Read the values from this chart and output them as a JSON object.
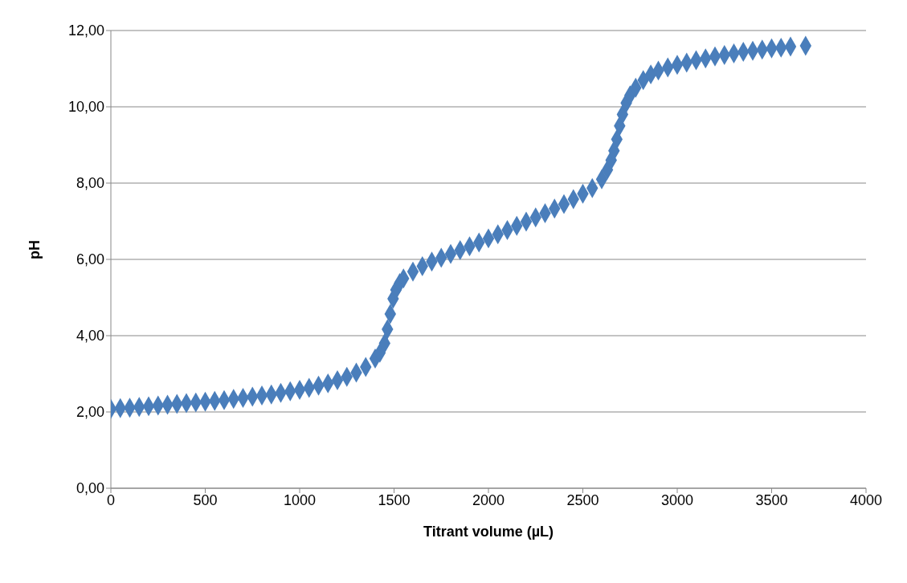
{
  "chart_data": {
    "type": "scatter",
    "xlabel": "Titrant volume (µL)",
    "ylabel": "pH",
    "x": [
      0,
      50,
      100,
      150,
      200,
      250,
      300,
      350,
      400,
      450,
      500,
      550,
      600,
      650,
      700,
      750,
      800,
      850,
      900,
      950,
      1000,
      1050,
      1100,
      1150,
      1200,
      1250,
      1300,
      1350,
      1400,
      1425,
      1450,
      1465,
      1480,
      1495,
      1510,
      1530,
      1550,
      1600,
      1650,
      1700,
      1750,
      1800,
      1850,
      1900,
      1950,
      2000,
      2050,
      2100,
      2150,
      2200,
      2250,
      2300,
      2350,
      2400,
      2450,
      2500,
      2550,
      2600,
      2630,
      2650,
      2665,
      2680,
      2695,
      2710,
      2730,
      2750,
      2780,
      2820,
      2860,
      2900,
      2950,
      3000,
      3050,
      3100,
      3150,
      3200,
      3250,
      3300,
      3350,
      3400,
      3450,
      3500,
      3550,
      3600,
      3680
    ],
    "series": [
      {
        "color": "#4a7ebb",
        "values": [
          2.08,
          2.1,
          2.11,
          2.13,
          2.15,
          2.17,
          2.19,
          2.21,
          2.23,
          2.25,
          2.27,
          2.29,
          2.31,
          2.34,
          2.37,
          2.4,
          2.43,
          2.46,
          2.5,
          2.54,
          2.58,
          2.63,
          2.69,
          2.75,
          2.83,
          2.92,
          3.03,
          3.18,
          3.4,
          3.55,
          3.8,
          4.17,
          4.57,
          4.97,
          5.2,
          5.38,
          5.5,
          5.68,
          5.82,
          5.94,
          6.04,
          6.14,
          6.24,
          6.34,
          6.44,
          6.55,
          6.66,
          6.77,
          6.88,
          6.99,
          7.1,
          7.21,
          7.33,
          7.45,
          7.58,
          7.72,
          7.87,
          8.1,
          8.35,
          8.6,
          8.85,
          9.15,
          9.5,
          9.8,
          10.1,
          10.3,
          10.5,
          10.7,
          10.85,
          10.95,
          11.03,
          11.1,
          11.16,
          11.22,
          11.27,
          11.32,
          11.36,
          11.4,
          11.44,
          11.47,
          11.5,
          11.53,
          11.55,
          11.58,
          11.6
        ]
      }
    ],
    "xlim": [
      0,
      4000
    ],
    "xticks": [
      0,
      500,
      1000,
      1500,
      2000,
      2500,
      3000,
      3500,
      4000
    ],
    "ylim": [
      0,
      12
    ],
    "yticks": [
      {
        "value": 0,
        "label": "0,00"
      },
      {
        "value": 2,
        "label": "2,00"
      },
      {
        "value": 4,
        "label": "4,00"
      },
      {
        "value": 6,
        "label": "6,00"
      },
      {
        "value": 8,
        "label": "8,00"
      },
      {
        "value": 10,
        "label": "10,00"
      },
      {
        "value": 12,
        "label": "12,00"
      }
    ],
    "grid": "y",
    "marker": "diamond",
    "legend": false
  }
}
